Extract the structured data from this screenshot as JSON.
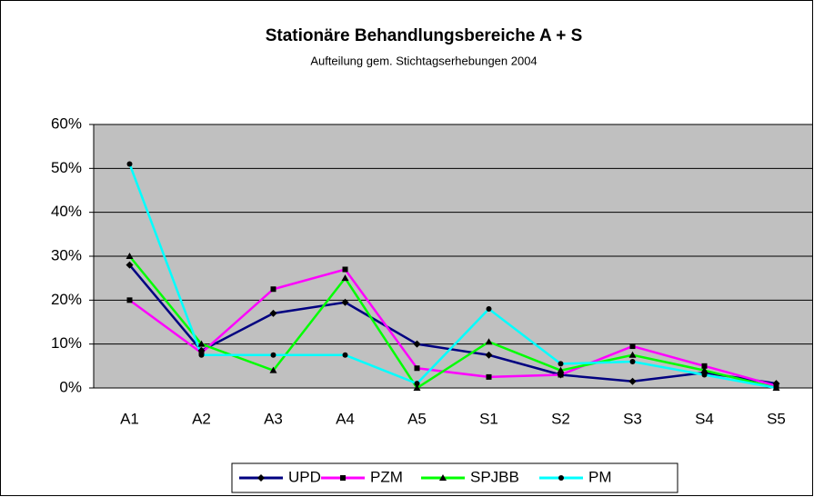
{
  "chart_data": {
    "type": "line",
    "title": "Stationäre Behandlungsbereiche A + S",
    "subtitle": "Aufteilung gem. Stichtagserhebungen 2004",
    "categories": [
      "A1",
      "A2",
      "A3",
      "A4",
      "A5",
      "S1",
      "S2",
      "S3",
      "S4",
      "S5"
    ],
    "series": [
      {
        "name": "UPD",
        "color": "#000080",
        "values": [
          28,
          8.5,
          17,
          19.5,
          10,
          7.5,
          3,
          1.5,
          3.5,
          1
        ]
      },
      {
        "name": "PZM",
        "color": "#ff00ff",
        "values": [
          20,
          8,
          22.5,
          27,
          4.5,
          2.5,
          3,
          9.5,
          5,
          0.5
        ]
      },
      {
        "name": "SPJBB",
        "color": "#00ff00",
        "values": [
          30,
          10,
          4,
          25,
          0,
          10.5,
          4,
          7.5,
          4,
          0
        ]
      },
      {
        "name": "PM",
        "color": "#00ffff",
        "values": [
          51,
          7.5,
          7.5,
          7.5,
          1,
          18,
          5.5,
          6,
          3,
          0
        ]
      }
    ],
    "ylim": [
      0,
      60
    ],
    "yticks": [
      {
        "value": 0,
        "label": "0%"
      },
      {
        "value": 10,
        "label": "10%"
      },
      {
        "value": 20,
        "label": "20%"
      },
      {
        "value": 30,
        "label": "30%"
      },
      {
        "value": 40,
        "label": "40%"
      },
      {
        "value": 50,
        "label": "50%"
      },
      {
        "value": 60,
        "label": "60%"
      }
    ],
    "grid": true,
    "legend": "bottom",
    "plot_background": "#c0c0c0"
  }
}
